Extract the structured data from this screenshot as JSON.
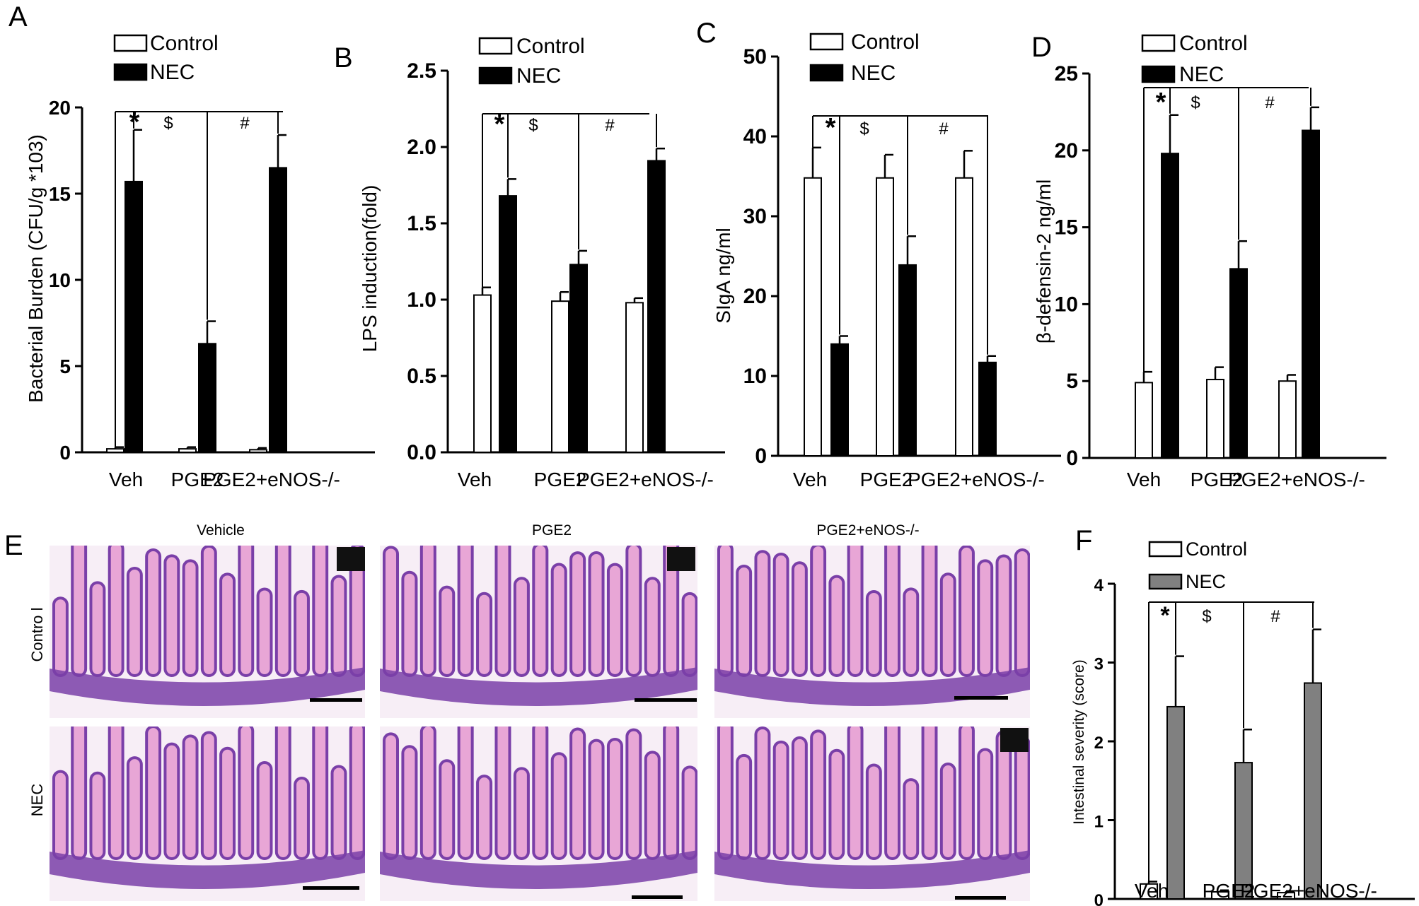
{
  "colors": {
    "control_fill": "#ffffff",
    "nec_fill_black": "#000000",
    "nec_fill_gray": "#808080",
    "axis": "#000000",
    "he_pink": "#e8a6d6",
    "he_purple": "#7a3fa8",
    "he_background": "#f7eef6"
  },
  "chart_data": [
    {
      "panel": "A",
      "type": "bar",
      "ylabel": "Bacterial Burden (CFU/g *103)",
      "ylim": [
        0,
        20
      ],
      "yticks": [
        "0",
        "5",
        "10",
        "15",
        "20"
      ],
      "categories": [
        "Veh",
        "PGE2",
        "PGE2+eNOS-/-"
      ],
      "series": [
        {
          "name": "Control",
          "values": [
            0.2,
            0.2,
            0.15
          ],
          "errors": [
            0.1,
            0.1,
            0.1
          ]
        },
        {
          "name": "NEC",
          "values": [
            15.7,
            6.3,
            16.5
          ],
          "errors": [
            3.0,
            1.3,
            1.9
          ]
        }
      ],
      "legend": [
        "Control",
        "NEC"
      ],
      "significance": [
        "*",
        "$",
        "#"
      ]
    },
    {
      "panel": "B",
      "type": "bar",
      "ylabel": "LPS induction(fold)",
      "ylim": [
        0,
        2.5
      ],
      "yticks": [
        "0.0",
        "0.5",
        "1.0",
        "1.5",
        "2.0",
        "2.5"
      ],
      "categories": [
        "Veh",
        "PGE2",
        "PGE2+eNOS-/-"
      ],
      "series": [
        {
          "name": "Control",
          "values": [
            1.03,
            0.99,
            0.98
          ],
          "errors": [
            0.05,
            0.06,
            0.03
          ]
        },
        {
          "name": "NEC",
          "values": [
            1.68,
            1.23,
            1.91
          ],
          "errors": [
            0.11,
            0.09,
            0.08
          ]
        }
      ],
      "legend": [
        "Control",
        "NEC"
      ],
      "significance": [
        "*",
        "$",
        "#"
      ]
    },
    {
      "panel": "C",
      "type": "bar",
      "ylabel": "SIgA ng/ml",
      "ylim": [
        0,
        50
      ],
      "yticks": [
        "0",
        "10",
        "20",
        "30",
        "40",
        "50"
      ],
      "categories": [
        "Veh",
        "PGE2",
        "PGE2+eNOS-/-"
      ],
      "series": [
        {
          "name": "Control",
          "values": [
            34.8,
            34.8,
            34.8
          ],
          "errors": [
            3.8,
            2.9,
            3.4
          ]
        },
        {
          "name": "NEC",
          "values": [
            14.0,
            23.9,
            11.7
          ],
          "errors": [
            1.0,
            3.6,
            0.8
          ]
        }
      ],
      "legend": [
        "Control",
        "NEC"
      ],
      "significance": [
        "*",
        "$",
        "#"
      ]
    },
    {
      "panel": "D",
      "type": "bar",
      "ylabel": "β-defensin-2 ng/ml",
      "ylim": [
        0,
        25
      ],
      "yticks": [
        "0",
        "5",
        "10",
        "15",
        "20",
        "25"
      ],
      "categories": [
        "Veh",
        "PGE2",
        "PGE2+eNOS-/-"
      ],
      "series": [
        {
          "name": "Control",
          "values": [
            4.9,
            5.1,
            5.0
          ],
          "errors": [
            0.7,
            0.8,
            0.4
          ]
        },
        {
          "name": "NEC",
          "values": [
            19.8,
            12.3,
            21.3
          ],
          "errors": [
            2.5,
            1.8,
            1.5
          ]
        }
      ],
      "legend": [
        "Control",
        "NEC"
      ],
      "significance": [
        "*",
        "$",
        "#"
      ]
    },
    {
      "panel": "F",
      "type": "bar",
      "ylabel": "Intestinal severity (score)",
      "ylim": [
        0,
        4
      ],
      "yticks": [
        "0",
        "1",
        "2",
        "3",
        "4"
      ],
      "categories": [
        "Veh",
        "PGE2",
        "PGE2+eNOS-/-"
      ],
      "series": [
        {
          "name": "Control",
          "values": [
            0.19,
            0.09,
            0.08
          ],
          "errors": [
            0.03,
            0.02,
            0.02
          ]
        },
        {
          "name": "NEC",
          "values": [
            2.44,
            1.73,
            2.74
          ],
          "errors": [
            0.64,
            0.42,
            0.68
          ]
        }
      ],
      "legend": [
        "Control",
        "NEC"
      ],
      "significance": [
        "*",
        "$",
        "#"
      ]
    }
  ],
  "histology": {
    "panel_label": "E",
    "column_labels": [
      "Vehicle",
      "PGE2",
      "PGE2+eNOS-/-"
    ],
    "row_labels": [
      "Contro l",
      "NEC"
    ]
  }
}
